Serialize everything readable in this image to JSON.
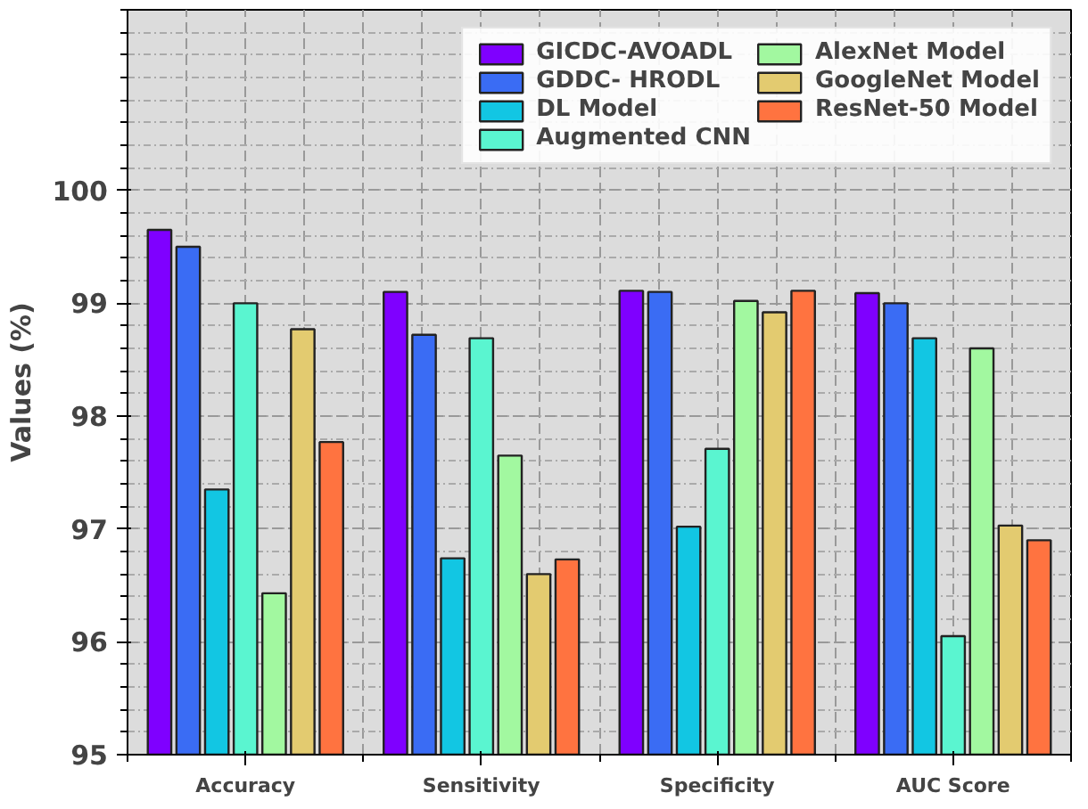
{
  "chart_data": {
    "type": "bar",
    "ylabel": "Values (%)",
    "categories": [
      "Accuracy",
      "Sensitivity",
      "Specificity",
      "AUC Score"
    ],
    "series": [
      {
        "name": "GICDC-AVOADL",
        "color": "#7f00ff",
        "values": [
          99.65,
          99.1,
          99.11,
          99.09
        ]
      },
      {
        "name": "GDDC- HRODL",
        "color": "#3a6cf4",
        "values": [
          99.5,
          98.72,
          99.1,
          99.0
        ]
      },
      {
        "name": "DL Model",
        "color": "#12c6e3",
        "values": [
          97.35,
          96.74,
          97.02,
          98.69
        ]
      },
      {
        "name": "Augmented CNN",
        "color": "#5af5d0",
        "values": [
          99.0,
          98.69,
          97.71,
          96.05
        ]
      },
      {
        "name": "AlexNet Model",
        "color": "#a2f8a0",
        "values": [
          96.43,
          97.65,
          99.02,
          98.6
        ]
      },
      {
        "name": "GoogleNet Model",
        "color": "#e3cb70",
        "values": [
          98.77,
          96.6,
          98.92,
          97.03
        ]
      },
      {
        "name": "ResNet-50 Model",
        "color": "#ff7340",
        "values": [
          97.77,
          96.73,
          99.11,
          96.9
        ]
      }
    ],
    "ylim": [
      95,
      101.6
    ],
    "yticks": [
      95,
      96,
      97,
      98,
      99,
      100
    ],
    "grid": true,
    "legend": "top right"
  }
}
